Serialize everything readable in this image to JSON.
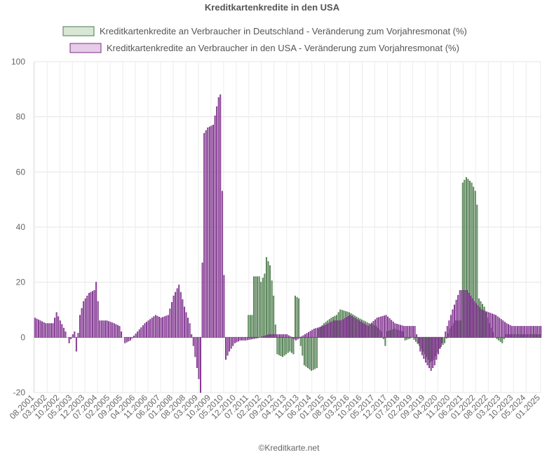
{
  "chart_data": {
    "type": "bar",
    "title": "Kreditkartenkredite in den USA",
    "credit": "©Kreditkarte.net",
    "ylim": [
      -20,
      100
    ],
    "yticks": [
      -20,
      0,
      20,
      40,
      60,
      80,
      100
    ],
    "grid": true,
    "legend_position": "top",
    "start_month": "08.2001",
    "x_tick_labels": [
      "08.2001",
      "03.2002",
      "10.2002",
      "05.2003",
      "12.2003",
      "07.2004",
      "02.2005",
      "09.2005",
      "04.2006",
      "11.2006",
      "06.2007",
      "01.2008",
      "08.2008",
      "03.2009",
      "10.2009",
      "05.2010",
      "12.2010",
      "07.2011",
      "02.2012",
      "09.2012",
      "04.2013",
      "11.2013",
      "06.2014",
      "01.2015",
      "08.2015",
      "03.2016",
      "10.2016",
      "05.2017",
      "12.2017",
      "07.2018",
      "02.2019",
      "09.2019",
      "04.2020",
      "11.2020",
      "06.2021",
      "01.2022",
      "08.2022",
      "03.2023",
      "10.2023",
      "05.2024",
      "01.2025"
    ],
    "series": [
      {
        "name": "Kreditkartenkredite an Verbraucher in Deutschland - Veränderung zum Vorjahresmonat (%)",
        "color": "#4a7a4a",
        "fill": "#d9e6d6",
        "anchors": [
          [
            0,
            0
          ],
          [
            118,
            0
          ],
          [
            119,
            8
          ],
          [
            121,
            8
          ],
          [
            122,
            22
          ],
          [
            125,
            22
          ],
          [
            126,
            20
          ],
          [
            128,
            23
          ],
          [
            129,
            29
          ],
          [
            131,
            26
          ],
          [
            133,
            15
          ],
          [
            135,
            -6
          ],
          [
            138,
            -7
          ],
          [
            142,
            -5
          ],
          [
            144,
            -6
          ],
          [
            145,
            15
          ],
          [
            147,
            14
          ],
          [
            148,
            -3
          ],
          [
            150,
            -10
          ],
          [
            154,
            -12
          ],
          [
            157,
            -11
          ],
          [
            158,
            3
          ],
          [
            161,
            5
          ],
          [
            165,
            7
          ],
          [
            168,
            8
          ],
          [
            170,
            10
          ],
          [
            175,
            9
          ],
          [
            180,
            7
          ],
          [
            183,
            6
          ],
          [
            186,
            5
          ],
          [
            190,
            4
          ],
          [
            193,
            2
          ],
          [
            195,
            -3
          ],
          [
            196,
            2
          ],
          [
            200,
            3
          ],
          [
            205,
            2
          ],
          [
            206,
            -1
          ],
          [
            210,
            0
          ],
          [
            214,
            -3
          ],
          [
            217,
            -6
          ],
          [
            220,
            -9
          ],
          [
            222,
            -8
          ],
          [
            225,
            -4
          ],
          [
            228,
            -2
          ],
          [
            231,
            3
          ],
          [
            234,
            6
          ],
          [
            237,
            6
          ],
          [
            238,
            56
          ],
          [
            240,
            58
          ],
          [
            243,
            56
          ],
          [
            245,
            53
          ],
          [
            246,
            48
          ],
          [
            247,
            14
          ],
          [
            250,
            11
          ],
          [
            253,
            5
          ],
          [
            256,
            0
          ],
          [
            258,
            -1
          ],
          [
            260,
            -2
          ],
          [
            262,
            1
          ],
          [
            265,
            1
          ]
        ]
      },
      {
        "name": "Kreditkartenkredite an Verbraucher in den USA - Veränderung zum Vorjahresmonat (%)",
        "color": "#7a2a8a",
        "fill": "#e6cce6",
        "anchors": [
          [
            0,
            7
          ],
          [
            6,
            5
          ],
          [
            10,
            5
          ],
          [
            12,
            9
          ],
          [
            14,
            6
          ],
          [
            17,
            2
          ],
          [
            19,
            -2
          ],
          [
            21,
            1
          ],
          [
            22,
            2
          ],
          [
            23,
            -5
          ],
          [
            25,
            8
          ],
          [
            27,
            13
          ],
          [
            30,
            16
          ],
          [
            33,
            17
          ],
          [
            34,
            20
          ],
          [
            36,
            6
          ],
          [
            40,
            6
          ],
          [
            44,
            5
          ],
          [
            47,
            4
          ],
          [
            50,
            -2
          ],
          [
            53,
            -1
          ],
          [
            57,
            2
          ],
          [
            61,
            5
          ],
          [
            67,
            8
          ],
          [
            70,
            7
          ],
          [
            74,
            8
          ],
          [
            77,
            15
          ],
          [
            80,
            19
          ],
          [
            83,
            11
          ],
          [
            86,
            5
          ],
          [
            89,
            -7
          ],
          [
            91,
            -15
          ],
          [
            92,
            -20
          ],
          [
            94,
            74
          ],
          [
            96,
            76
          ],
          [
            99,
            77
          ],
          [
            102,
            87
          ],
          [
            103,
            88
          ],
          [
            104,
            53
          ],
          [
            106,
            -8
          ],
          [
            108,
            -5
          ],
          [
            111,
            -2
          ],
          [
            114,
            -1
          ],
          [
            117,
            -1
          ],
          [
            125,
            0
          ],
          [
            130,
            1
          ],
          [
            134,
            1
          ],
          [
            140,
            1
          ],
          [
            145,
            -1
          ],
          [
            150,
            1
          ],
          [
            155,
            3
          ],
          [
            160,
            4
          ],
          [
            166,
            6
          ],
          [
            170,
            6
          ],
          [
            175,
            8
          ],
          [
            180,
            6
          ],
          [
            185,
            4
          ],
          [
            190,
            7
          ],
          [
            195,
            8
          ],
          [
            200,
            5
          ],
          [
            205,
            4
          ],
          [
            211,
            4
          ],
          [
            214,
            -5
          ],
          [
            217,
            -9
          ],
          [
            220,
            -12
          ],
          [
            222,
            -10
          ],
          [
            224,
            -6
          ],
          [
            226,
            -2
          ],
          [
            229,
            4
          ],
          [
            232,
            10
          ],
          [
            236,
            17
          ],
          [
            240,
            17
          ],
          [
            244,
            13
          ],
          [
            248,
            10
          ],
          [
            252,
            9
          ],
          [
            256,
            8
          ],
          [
            260,
            6
          ],
          [
            262,
            5
          ],
          [
            265,
            4
          ]
        ]
      }
    ]
  }
}
